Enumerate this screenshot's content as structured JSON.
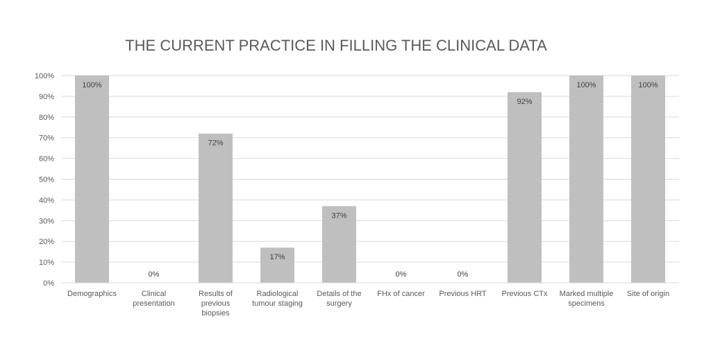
{
  "chart_data": {
    "type": "bar",
    "title": "THE CURRENT PRACTICE IN FILLING THE CLINICAL DATA",
    "xlabel": "",
    "ylabel": "",
    "ylim": [
      0,
      100
    ],
    "yticks": [
      "0%",
      "10%",
      "20%",
      "30%",
      "40%",
      "50%",
      "60%",
      "70%",
      "80%",
      "90%",
      "100%"
    ],
    "grid": true,
    "legend": "none",
    "categories": [
      [
        "Demographics"
      ],
      [
        "Clinical",
        "presentation"
      ],
      [
        "Results of",
        "previous",
        "biopsies"
      ],
      [
        "Radiological",
        "tumour staging"
      ],
      [
        "Details of the",
        "surgery"
      ],
      [
        "FHx of cancer"
      ],
      [
        "Previous HRT"
      ],
      [
        "Previous CTx"
      ],
      [
        "Marked multiple",
        "specimens"
      ],
      [
        "Site of origin"
      ]
    ],
    "values": [
      100,
      0,
      72,
      17,
      37,
      0,
      0,
      92,
      100,
      100
    ],
    "data_labels": [
      "100%",
      "0%",
      "72%",
      "17%",
      "37%",
      "0%",
      "0%",
      "92%",
      "100%",
      "100%"
    ],
    "colors": {
      "bar": "#bfbfbf",
      "grid": "#d9d9d9",
      "text": "#595959",
      "axis": "#d9d9d9"
    }
  }
}
